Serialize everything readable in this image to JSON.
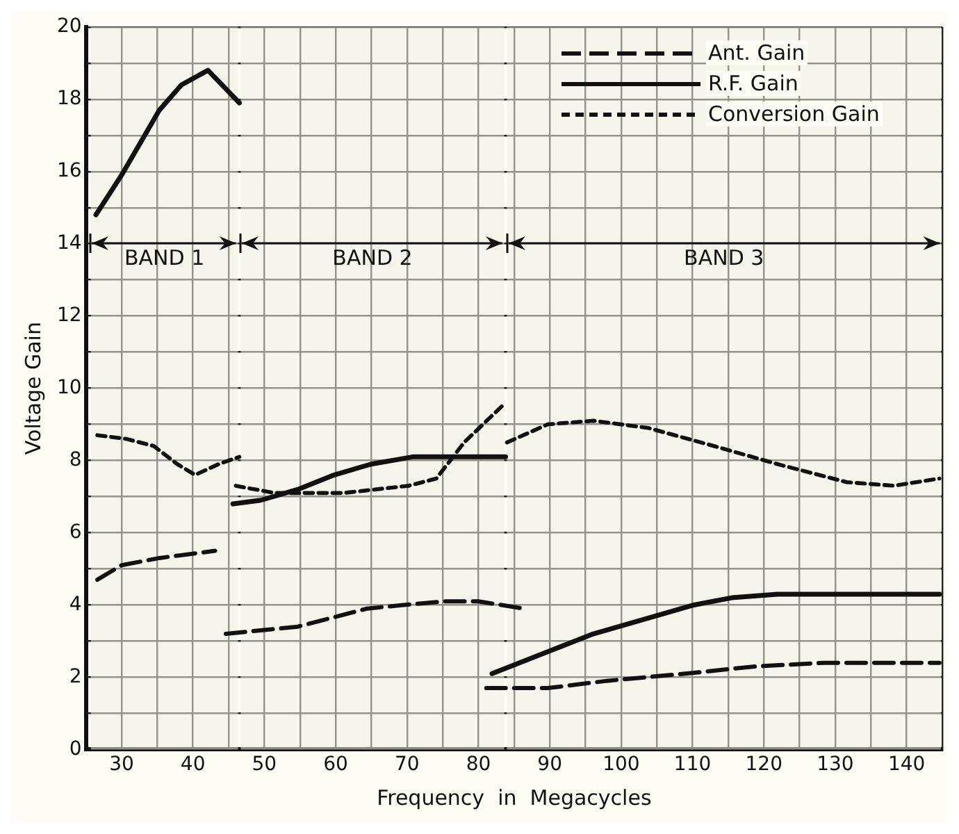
{
  "chart_data": {
    "type": "line",
    "xlabel": "Frequency  in  Megacycles",
    "ylabel": "Voltage Gain",
    "xlim": [
      25,
      145
    ],
    "xticks": [
      {
        "value": 25,
        "label": null
      },
      30,
      {
        "value": 35,
        "label": null
      },
      40,
      {
        "value": 45,
        "label": null
      },
      50,
      {
        "value": 55,
        "label": null
      },
      60,
      {
        "value": 65,
        "label": null
      },
      70,
      {
        "value": 75,
        "label": null
      },
      80,
      {
        "value": 85,
        "label": null
      },
      90,
      {
        "value": 95,
        "label": null
      },
      100,
      {
        "value": 105,
        "label": null
      },
      110,
      {
        "value": 115,
        "label": null
      },
      120,
      {
        "value": 125,
        "label": null
      },
      130,
      {
        "value": 135,
        "label": null
      },
      140,
      {
        "value": 145,
        "label": null
      }
    ],
    "ylim": [
      0,
      20
    ],
    "yticks": [
      0,
      {
        "value": 1,
        "label": null
      },
      2,
      {
        "value": 3,
        "label": null
      },
      4,
      {
        "value": 5,
        "label": null
      },
      6,
      {
        "value": 7,
        "label": null
      },
      8,
      {
        "value": 9,
        "label": null
      },
      10,
      {
        "value": 11,
        "label": null
      },
      12,
      {
        "value": 13,
        "label": null
      },
      14,
      {
        "value": 15,
        "label": null
      },
      16,
      {
        "value": 17,
        "label": null
      },
      18,
      {
        "value": 19,
        "label": null
      },
      20
    ],
    "grid": true,
    "legend": "top right",
    "bands": [
      {
        "axis": "x",
        "from": 25.5,
        "to": 46.5,
        "label": "BAND 1",
        "color": "#f1efe2"
      },
      {
        "axis": "x",
        "from": 46.5,
        "to": 83.8,
        "label": "BAND 2",
        "color": "#f1efe2"
      },
      {
        "axis": "x",
        "from": 83.8,
        "to": 145,
        "label": "BAND 3",
        "color": "#f1efe2"
      }
    ],
    "series": [
      {
        "name": "Ant. Gain",
        "color": "#111111",
        "line_style": "dashed",
        "x": [
          26.6,
          30,
          35.3,
          43.1,
          44,
          44.6,
          54.7,
          64.4,
          69.5,
          75.3,
          80,
          86.4,
          84,
          81.1,
          89.7,
          98,
          109,
          118.8,
          128.5,
          144.6
        ],
        "values": [
          4.7,
          5.1,
          5.3,
          5.5,
          null,
          3.2,
          3.4,
          3.9,
          4.0,
          4.1,
          4.1,
          3.9,
          null,
          1.7,
          1.7,
          1.9,
          2.1,
          2.3,
          2.4,
          2.4
        ]
      },
      {
        "name": "R.F. Gain",
        "color": "#111111",
        "line_style": "solid",
        "x": [
          26.4,
          30,
          35.3,
          38.4,
          42.1,
          46.5,
          46,
          45.6,
          49.5,
          54.7,
          59.8,
          65,
          70.8,
          83.8,
          83,
          81.9,
          96.1,
          110.2,
          115.5,
          121.9,
          144.6
        ],
        "values": [
          14.8,
          15.9,
          17.7,
          18.4,
          18.8,
          17.9,
          null,
          6.8,
          6.9,
          7.2,
          7.6,
          7.9,
          8.1,
          8.1,
          null,
          2.1,
          3.2,
          4.0,
          4.2,
          4.3,
          4.3
        ]
      },
      {
        "name": "Conversion Gain",
        "color": "#111111",
        "line_style": "dotted",
        "x": [
          26.6,
          30.6,
          34.5,
          37.8,
          40.3,
          43.6,
          46.5,
          46.2,
          46,
          51.4,
          61.1,
          70.2,
          74.1,
          78,
          83.8,
          83.9,
          84,
          89.7,
          96.1,
          103.8,
          113,
          121.9,
          131.6,
          138.2,
          144.6
        ],
        "values": [
          8.7,
          8.6,
          8.4,
          7.9,
          7.6,
          7.9,
          8.1,
          null,
          7.3,
          7.1,
          7.1,
          7.3,
          7.5,
          8.5,
          9.6,
          null,
          8.5,
          9.0,
          9.1,
          8.9,
          8.4,
          7.9,
          7.4,
          7.3,
          7.5
        ]
      }
    ]
  }
}
